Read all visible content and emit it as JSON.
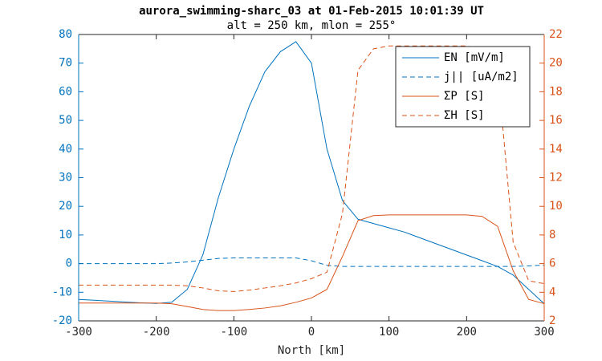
{
  "chart_data": {
    "type": "line",
    "title": "aurora_swimming-sharc_03 at 01-Feb-2015 10:01:39 UT",
    "subtitle": "alt = 250 km, mlon = 255°",
    "x_label": "North [km]",
    "x": [
      -300,
      -280,
      -260,
      -240,
      -220,
      -200,
      -180,
      -160,
      -140,
      -120,
      -100,
      -80,
      -60,
      -40,
      -20,
      0,
      20,
      40,
      60,
      80,
      100,
      120,
      140,
      160,
      180,
      200,
      220,
      240,
      260,
      280,
      300
    ],
    "xlim": [
      -300,
      300
    ],
    "xticks": [
      -300,
      -200,
      -100,
      0,
      100,
      200,
      300
    ],
    "ylim": [
      -20,
      80
    ],
    "yticks": [
      -20,
      -10,
      0,
      10,
      20,
      30,
      40,
      50,
      60,
      70,
      80
    ],
    "y2lim": [
      2,
      22
    ],
    "y2ticks": [
      2,
      4,
      6,
      8,
      10,
      12,
      14,
      16,
      18,
      20,
      22
    ],
    "legend": "upper right",
    "series": [
      {
        "name": "EN [mV/m]",
        "color": "#0072bd",
        "linestyle": "solid",
        "values": [
          -12.5,
          -12.8,
          -13.1,
          -13.4,
          -13.7,
          -13.9,
          -13.5,
          -9,
          3,
          23,
          40,
          55,
          67,
          74,
          77.5,
          70,
          40,
          22,
          15.5,
          14,
          12.5,
          11,
          9,
          7,
          5,
          3,
          1,
          -1,
          -4,
          -9,
          -14
        ]
      },
      {
        "name": "j|| [uA/m2]",
        "color": "#0072bd",
        "linestyle": "dashed",
        "values": [
          0,
          0,
          0,
          0,
          0,
          0,
          0.2,
          0.6,
          1.2,
          1.8,
          2,
          2,
          2,
          2,
          2,
          1,
          -0.6,
          -1,
          -1,
          -1,
          -1,
          -1,
          -1,
          -1,
          -1,
          -1,
          -1,
          -1,
          -1,
          -0.8,
          -0.5
        ]
      },
      {
        "name": "ΣP [S]",
        "color": "#d95319",
        "linestyle": "solid",
        "axis": "y2",
        "values": [
          3.25,
          3.25,
          3.25,
          3.25,
          3.25,
          3.25,
          3.2,
          3.0,
          2.8,
          2.72,
          2.72,
          2.8,
          2.9,
          3.05,
          3.3,
          3.6,
          4.2,
          6.5,
          9.0,
          9.35,
          9.4,
          9.4,
          9.4,
          9.4,
          9.4,
          9.4,
          9.3,
          8.6,
          5.5,
          3.5,
          3.2
        ]
      },
      {
        "name": "ΣH [S]",
        "color": "#d95319",
        "linestyle": "dashed",
        "axis": "y2",
        "values": [
          4.5,
          4.5,
          4.5,
          4.5,
          4.5,
          4.5,
          4.5,
          4.45,
          4.3,
          4.1,
          4.05,
          4.15,
          4.3,
          4.45,
          4.65,
          4.95,
          5.4,
          9.5,
          19.5,
          21.0,
          21.2,
          21.2,
          21.2,
          21.2,
          21.2,
          21.2,
          21.0,
          19.5,
          7.5,
          4.8,
          4.6
        ]
      }
    ]
  }
}
